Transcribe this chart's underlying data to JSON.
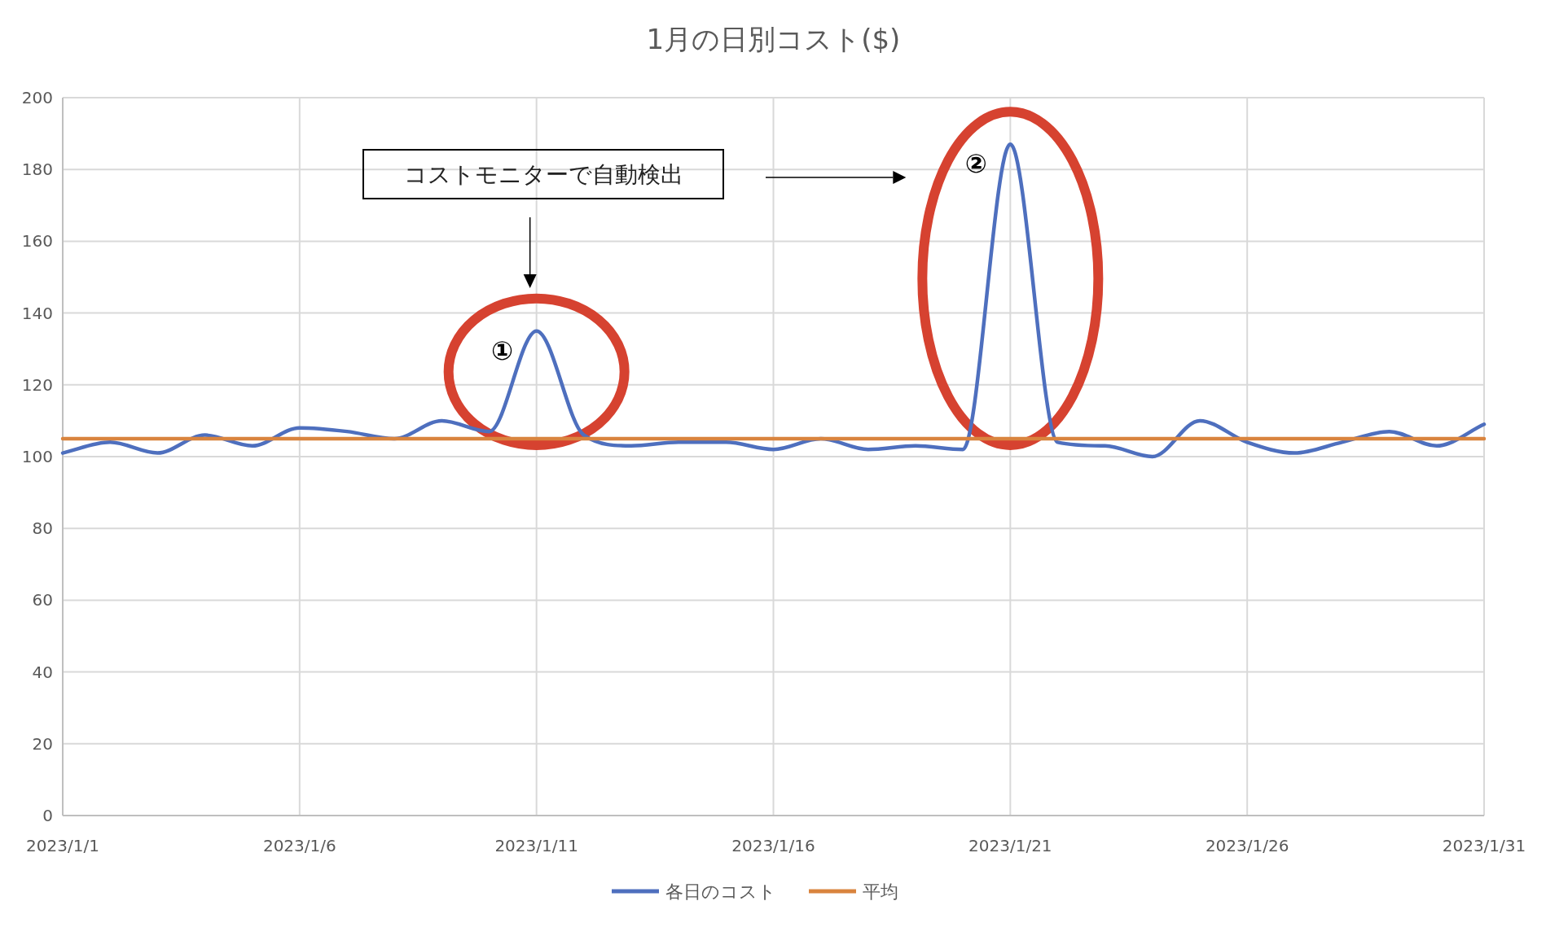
{
  "chart_data": {
    "type": "line",
    "title": "1月の日別コスト($)",
    "x": [
      "2023-01-01",
      "2023-01-02",
      "2023-01-03",
      "2023-01-04",
      "2023-01-05",
      "2023-01-06",
      "2023-01-07",
      "2023-01-08",
      "2023-01-09",
      "2023-01-10",
      "2023-01-11",
      "2023-01-12",
      "2023-01-13",
      "2023-01-14",
      "2023-01-15",
      "2023-01-16",
      "2023-01-17",
      "2023-01-18",
      "2023-01-19",
      "2023-01-20",
      "2023-01-21",
      "2023-01-22",
      "2023-01-23",
      "2023-01-24",
      "2023-01-25",
      "2023-01-26",
      "2023-01-27",
      "2023-01-28",
      "2023-01-29",
      "2023-01-30",
      "2023-01-31"
    ],
    "series": [
      {
        "name": "各日のコスト",
        "color": "#4e6fbe",
        "values": [
          101,
          104,
          101,
          106,
          103,
          108,
          107,
          105,
          110,
          107,
          135,
          106,
          103,
          104,
          104,
          102,
          105,
          102,
          103,
          102,
          187,
          104,
          103,
          100,
          110,
          104,
          101,
          104,
          107,
          103,
          109
        ]
      },
      {
        "name": "平均",
        "color": "#d9843e",
        "values": [
          105,
          105,
          105,
          105,
          105,
          105,
          105,
          105,
          105,
          105,
          105,
          105,
          105,
          105,
          105,
          105,
          105,
          105,
          105,
          105,
          105,
          105,
          105,
          105,
          105,
          105,
          105,
          105,
          105,
          105,
          105
        ]
      }
    ],
    "xlim": [
      "2023-01-01",
      "2023-01-31"
    ],
    "xticks": [
      {
        "value": "2023-01-01",
        "label": "2023/1/1"
      },
      {
        "value": "2023-01-06",
        "label": "2023/1/6"
      },
      {
        "value": "2023-01-11",
        "label": "2023/1/11"
      },
      {
        "value": "2023-01-16",
        "label": "2023/1/16"
      },
      {
        "value": "2023-01-21",
        "label": "2023/1/21"
      },
      {
        "value": "2023-01-26",
        "label": "2023/1/26"
      },
      {
        "value": "2023-01-31",
        "label": "2023/1/31"
      }
    ],
    "ylim": [
      0,
      200
    ],
    "yticks": [
      0,
      20,
      40,
      60,
      80,
      100,
      120,
      140,
      160,
      180,
      200
    ],
    "grid": true,
    "legend": "bottom",
    "annotations": [
      "コストモニターで自動検出",
      {
        "text": "①",
        "x": "2023-01-11",
        "y": 135
      },
      {
        "text": "②",
        "x": "2023-01-21",
        "y": 187
      }
    ]
  }
}
